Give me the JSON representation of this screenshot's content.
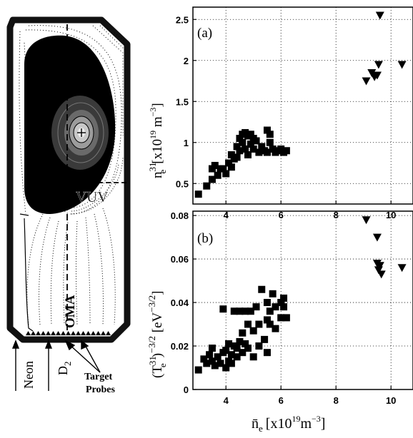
{
  "cross_section": {
    "labels": {
      "vuv": "VUV",
      "oma": "OMA",
      "neon": "Neon",
      "d2_main": "D",
      "d2_sub": "2",
      "target_line1": "Target",
      "target_line2": "Probes"
    },
    "colors": {
      "plasma_core": "#000000",
      "vessel_wall": "#111111",
      "background": "#ffffff"
    }
  },
  "chart_data": [
    {
      "type": "scatter",
      "panel_label": "(a)",
      "ylabel_parts": {
        "main": "n",
        "sub": "e",
        "sup": "31",
        "unit_open": "[x10",
        "unit_exp1": "19",
        "unit_m": " m",
        "unit_exp2": "−3",
        "unit_close": "]"
      },
      "xlim": [
        2.8,
        10.8
      ],
      "ylim": [
        0.25,
        2.65
      ],
      "xticks": [
        4,
        6,
        8,
        10
      ],
      "xtick_labels": [
        "4",
        "6",
        "8",
        "10"
      ],
      "yticks": [
        0.5,
        1,
        1.5,
        2,
        2.5
      ],
      "ytick_labels": [
        "0.5",
        "1",
        "1.5",
        "2",
        "2.5"
      ],
      "grid": true,
      "series": [
        {
          "marker": "square",
          "points": [
            [
              3.0,
              0.37
            ],
            [
              3.3,
              0.47
            ],
            [
              3.5,
              0.55
            ],
            [
              3.5,
              0.68
            ],
            [
              3.6,
              0.72
            ],
            [
              3.7,
              0.6
            ],
            [
              3.8,
              0.68
            ],
            [
              3.9,
              0.68
            ],
            [
              4.0,
              0.62
            ],
            [
              4.1,
              0.75
            ],
            [
              4.2,
              0.7
            ],
            [
              4.2,
              0.85
            ],
            [
              4.3,
              0.8
            ],
            [
              4.4,
              0.95
            ],
            [
              4.4,
              0.82
            ],
            [
              4.5,
              1.05
            ],
            [
              4.5,
              0.9
            ],
            [
              4.6,
              1.0
            ],
            [
              4.6,
              1.1
            ],
            [
              4.7,
              1.12
            ],
            [
              4.7,
              0.92
            ],
            [
              4.8,
              1.08
            ],
            [
              4.8,
              0.85
            ],
            [
              4.9,
              1.1
            ],
            [
              4.9,
              0.98
            ],
            [
              5.0,
              1.05
            ],
            [
              5.0,
              0.92
            ],
            [
              5.1,
              1.02
            ],
            [
              5.2,
              0.88
            ],
            [
              5.3,
              0.95
            ],
            [
              5.4,
              0.9
            ],
            [
              5.5,
              1.15
            ],
            [
              5.5,
              0.88
            ],
            [
              5.6,
              1.0
            ],
            [
              5.6,
              1.1
            ],
            [
              5.7,
              0.92
            ],
            [
              5.8,
              0.88
            ],
            [
              5.9,
              0.9
            ],
            [
              6.0,
              0.92
            ],
            [
              6.1,
              0.88
            ],
            [
              6.2,
              0.9
            ]
          ]
        },
        {
          "marker": "triangle-down",
          "points": [
            [
              9.1,
              1.75
            ],
            [
              9.3,
              1.85
            ],
            [
              9.4,
              1.8
            ],
            [
              9.5,
              1.82
            ],
            [
              9.55,
              1.95
            ],
            [
              9.6,
              2.55
            ],
            [
              10.4,
              1.95
            ]
          ]
        }
      ]
    },
    {
      "type": "scatter",
      "panel_label": "(b)",
      "ylabel_parts": {
        "open": "(T",
        "sub": "e",
        "sup": "31",
        "close": ")",
        "exp": "−3/2",
        "unit_open": " [eV",
        "unit_exp": "−3/2",
        "unit_close": "]"
      },
      "xlabel_parts": {
        "main": "n̄",
        "sub": "e",
        "unit_open": "[x10",
        "unit_exp1": "19",
        "unit_m": "m",
        "unit_exp2": "−3",
        "unit_close": "]"
      },
      "xlim": [
        2.8,
        10.8
      ],
      "ylim": [
        0,
        0.082
      ],
      "xticks": [
        4,
        6,
        8,
        10
      ],
      "xtick_labels": [
        "4",
        "6",
        "8",
        "10"
      ],
      "yticks": [
        0,
        0.02,
        0.04,
        0.06,
        0.08
      ],
      "ytick_labels": [
        "0",
        "0.02",
        "0.04",
        "0.06",
        "0.08"
      ],
      "grid": true,
      "series": [
        {
          "marker": "square",
          "points": [
            [
              3.0,
              0.009
            ],
            [
              3.2,
              0.014
            ],
            [
              3.3,
              0.012
            ],
            [
              3.4,
              0.016
            ],
            [
              3.5,
              0.013
            ],
            [
              3.5,
              0.019
            ],
            [
              3.6,
              0.011
            ],
            [
              3.7,
              0.015
            ],
            [
              3.8,
              0.012
            ],
            [
              3.9,
              0.017
            ],
            [
              3.9,
              0.037
            ],
            [
              4.0,
              0.018
            ],
            [
              4.0,
              0.01
            ],
            [
              4.1,
              0.021
            ],
            [
              4.1,
              0.013
            ],
            [
              4.2,
              0.016
            ],
            [
              4.2,
              0.012
            ],
            [
              4.3,
              0.02
            ],
            [
              4.3,
              0.036
            ],
            [
              4.4,
              0.019
            ],
            [
              4.4,
              0.015
            ],
            [
              4.5,
              0.022
            ],
            [
              4.5,
              0.036
            ],
            [
              4.6,
              0.026
            ],
            [
              4.6,
              0.017
            ],
            [
              4.7,
              0.036
            ],
            [
              4.7,
              0.021
            ],
            [
              4.8,
              0.019
            ],
            [
              4.8,
              0.03
            ],
            [
              4.9,
              0.036
            ],
            [
              5.0,
              0.027
            ],
            [
              5.0,
              0.015
            ],
            [
              5.1,
              0.038
            ],
            [
              5.2,
              0.03
            ],
            [
              5.2,
              0.02
            ],
            [
              5.3,
              0.046
            ],
            [
              5.4,
              0.023
            ],
            [
              5.5,
              0.04
            ],
            [
              5.5,
              0.032
            ],
            [
              5.5,
              0.017
            ],
            [
              5.6,
              0.036
            ],
            [
              5.6,
              0.03
            ],
            [
              5.7,
              0.044
            ],
            [
              5.8,
              0.038
            ],
            [
              5.8,
              0.028
            ],
            [
              6.0,
              0.04
            ],
            [
              6.0,
              0.033
            ],
            [
              6.1,
              0.038
            ],
            [
              6.1,
              0.042
            ],
            [
              6.2,
              0.033
            ]
          ]
        },
        {
          "marker": "triangle-down",
          "points": [
            [
              9.1,
              0.078
            ],
            [
              9.5,
              0.07
            ],
            [
              9.5,
              0.058
            ],
            [
              9.55,
              0.055
            ],
            [
              9.6,
              0.057
            ],
            [
              9.65,
              0.053
            ],
            [
              10.4,
              0.056
            ]
          ]
        }
      ]
    }
  ]
}
